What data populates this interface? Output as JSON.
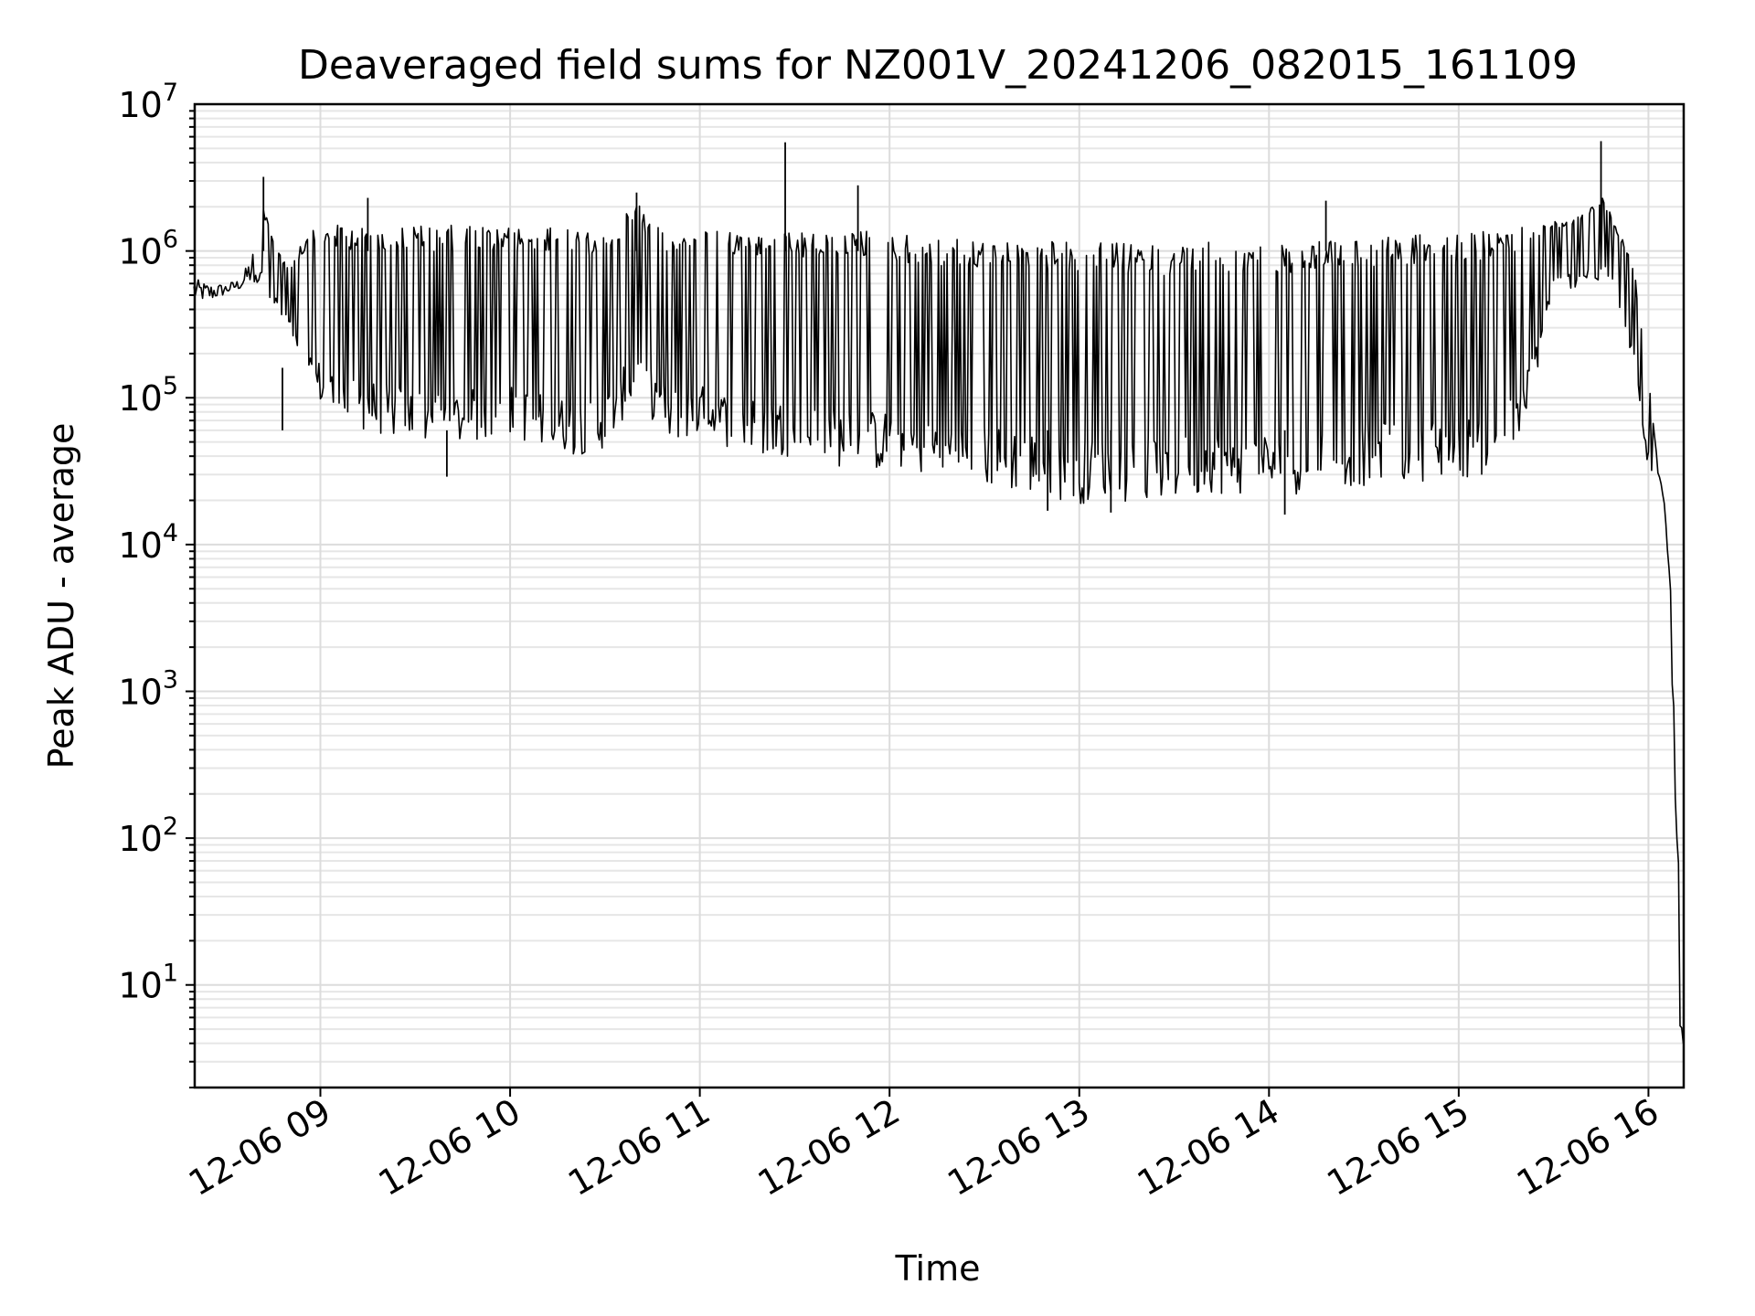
{
  "chart_data": {
    "type": "line",
    "title": "Deaveraged field sums for NZ001V_20241206_082015_161109",
    "xlabel": "Time",
    "ylabel": "Peak ADU - average",
    "yscale": "log",
    "xlim": [
      "2024-12-06 08:20:15",
      "2024-12-06 16:11:09"
    ],
    "ylim": [
      2,
      10000000
    ],
    "grid": true,
    "x_ticks": [
      {
        "value": "2024-12-06 09:00",
        "label": "12-06 09"
      },
      {
        "value": "2024-12-06 10:00",
        "label": "12-06 10"
      },
      {
        "value": "2024-12-06 11:00",
        "label": "12-06 11"
      },
      {
        "value": "2024-12-06 12:00",
        "label": "12-06 12"
      },
      {
        "value": "2024-12-06 13:00",
        "label": "12-06 13"
      },
      {
        "value": "2024-12-06 14:00",
        "label": "12-06 14"
      },
      {
        "value": "2024-12-06 15:00",
        "label": "12-06 15"
      },
      {
        "value": "2024-12-06 16:00",
        "label": "12-06 16"
      }
    ],
    "y_ticks": [
      {
        "value": 10,
        "base": "10",
        "exp": "1"
      },
      {
        "value": 100,
        "base": "10",
        "exp": "2"
      },
      {
        "value": 1000,
        "base": "10",
        "exp": "3"
      },
      {
        "value": 10000,
        "base": "10",
        "exp": "4"
      },
      {
        "value": 100000,
        "base": "10",
        "exp": "5"
      },
      {
        "value": 1000000,
        "base": "10",
        "exp": "6"
      },
      {
        "value": 10000000,
        "base": "10",
        "exp": "7"
      }
    ],
    "series": [
      {
        "color": "#000000",
        "x": [
          "2024-12-06 08:20",
          "2024-12-06 08:25",
          "2024-12-06 08:30",
          "2024-12-06 08:35",
          "2024-12-06 08:40",
          "2024-12-06 08:42",
          "2024-12-06 08:45",
          "2024-12-06 08:50",
          "2024-12-06 08:55",
          "2024-12-06 09:00",
          "2024-12-06 09:05",
          "2024-12-06 09:10",
          "2024-12-06 09:15",
          "2024-12-06 09:20",
          "2024-12-06 09:30",
          "2024-12-06 09:40",
          "2024-12-06 09:50",
          "2024-12-06 10:00",
          "2024-12-06 10:10",
          "2024-12-06 10:20",
          "2024-12-06 10:30",
          "2024-12-06 10:40",
          "2024-12-06 10:50",
          "2024-12-06 11:00",
          "2024-12-06 11:10",
          "2024-12-06 11:20",
          "2024-12-06 11:30",
          "2024-12-06 11:40",
          "2024-12-06 11:50",
          "2024-12-06 12:00",
          "2024-12-06 12:10",
          "2024-12-06 12:20",
          "2024-12-06 12:30",
          "2024-12-06 12:40",
          "2024-12-06 12:50",
          "2024-12-06 13:00",
          "2024-12-06 13:10",
          "2024-12-06 13:20",
          "2024-12-06 13:30",
          "2024-12-06 13:40",
          "2024-12-06 13:50",
          "2024-12-06 14:00",
          "2024-12-06 14:10",
          "2024-12-06 14:20",
          "2024-12-06 14:30",
          "2024-12-06 14:40",
          "2024-12-06 14:50",
          "2024-12-06 15:00",
          "2024-12-06 15:10",
          "2024-12-06 15:20",
          "2024-12-06 15:30",
          "2024-12-06 15:40",
          "2024-12-06 15:45",
          "2024-12-06 15:50",
          "2024-12-06 15:55",
          "2024-12-06 16:00",
          "2024-12-06 16:03",
          "2024-12-06 16:05",
          "2024-12-06 16:07",
          "2024-12-06 16:08",
          "2024-12-06 16:09",
          "2024-12-06 16:10",
          "2024-12-06 16:11"
        ],
        "low": [
          450000,
          450000,
          500000,
          550000,
          600000,
          700000,
          400000,
          300000,
          100000,
          90000,
          70000,
          60000,
          60000,
          55000,
          50000,
          45000,
          50000,
          55000,
          45000,
          40000,
          45000,
          100000,
          50000,
          55000,
          45000,
          40000,
          40000,
          35000,
          32000,
          32000,
          30000,
          27000,
          25000,
          23000,
          21000,
          19000,
          19000,
          20000,
          20000,
          22000,
          22000,
          22000,
          22000,
          25000,
          25000,
          27000,
          27000,
          28000,
          30000,
          50000,
          500000,
          600000,
          600000,
          500000,
          150000,
          30000,
          20000,
          10000,
          2000,
          600,
          50,
          5,
          4
        ],
        "high": [
          650000,
          600000,
          600000,
          650000,
          1200000,
          2000000,
          1200000,
          800000,
          1300000,
          1450000,
          1500000,
          1500000,
          1500000,
          1500000,
          1500000,
          1500000,
          1500000,
          1450000,
          1450000,
          1400000,
          1400000,
          2200000,
          1400000,
          1400000,
          1350000,
          1400000,
          1350000,
          1300000,
          1400000,
          1350000,
          1250000,
          1200000,
          1200000,
          1200000,
          1200000,
          1150000,
          1150000,
          1100000,
          1100000,
          1150000,
          1100000,
          1100000,
          1100000,
          1200000,
          1250000,
          1250000,
          1300000,
          1300000,
          1400000,
          1500000,
          1600000,
          1800000,
          2500000,
          1500000,
          900000,
          150000,
          35000,
          20000,
          5000,
          1000,
          100,
          50,
          4
        ]
      }
    ],
    "spikes": [
      {
        "x": "2024-12-06 08:42",
        "y": 3200000
      },
      {
        "x": "2024-12-06 09:15",
        "y": 2300000
      },
      {
        "x": "2024-12-06 10:40",
        "y": 2500000
      },
      {
        "x": "2024-12-06 11:27",
        "y": 5500000
      },
      {
        "x": "2024-12-06 11:50",
        "y": 2800000
      },
      {
        "x": "2024-12-06 14:18",
        "y": 2200000
      },
      {
        "x": "2024-12-06 15:45",
        "y": 5600000
      }
    ],
    "dips": [
      {
        "x": "2024-12-06 08:48",
        "y": 160000
      },
      {
        "x": "2024-12-06 09:40",
        "y": 29000
      },
      {
        "x": "2024-12-06 12:50",
        "y": 17000
      },
      {
        "x": "2024-12-06 13:10",
        "y": 16500
      },
      {
        "x": "2024-12-06 14:05",
        "y": 16000
      }
    ]
  }
}
